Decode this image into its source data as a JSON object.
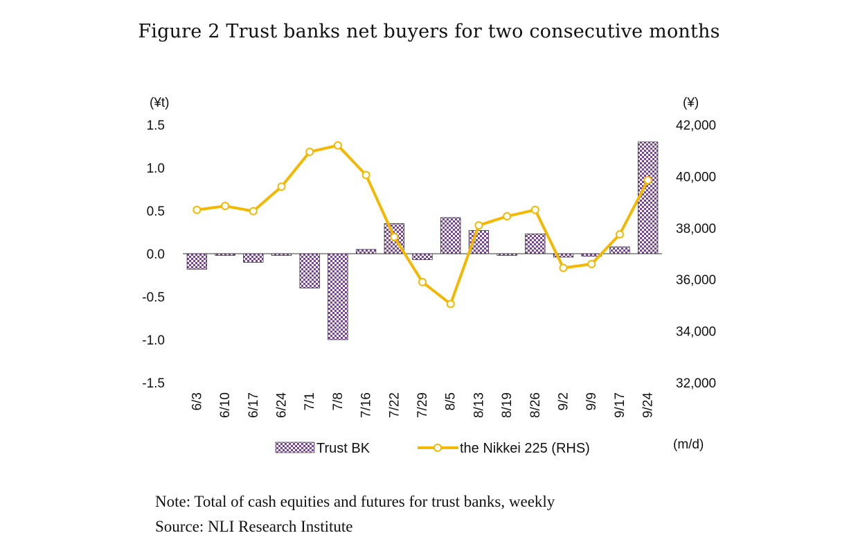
{
  "title": "Figure 2   Trust banks net buyers for two consecutive months",
  "notes": {
    "note": "Note: Total of cash equities and futures for trust banks, weekly",
    "source": "Source: NLI Research Institute"
  },
  "chart_data": {
    "type": "bar",
    "categories": [
      "6/3",
      "6/10",
      "6/17",
      "6/24",
      "7/1",
      "7/8",
      "7/16",
      "7/22",
      "7/29",
      "8/5",
      "8/13",
      "8/19",
      "8/26",
      "9/2",
      "9/9",
      "9/17",
      "9/24"
    ],
    "xlabel": "(m/d)",
    "ylabel": "(¥t)",
    "y2label": "(¥)",
    "ylim": [
      -1.5,
      1.5
    ],
    "y2lim": [
      32000,
      42000
    ],
    "yticks": [
      "1.5",
      "1.0",
      "0.5",
      "0.0",
      "-0.5",
      "-1.0",
      "-1.5"
    ],
    "y2ticks": [
      "42,000",
      "40,000",
      "38,000",
      "36,000",
      "34,000",
      "32,000"
    ],
    "grid": false,
    "legend_position": "bottom",
    "series": [
      {
        "name": "Trust BK",
        "type": "bar",
        "axis": "left",
        "color": "#7B3F9E",
        "pattern": "checkered",
        "values": [
          -0.18,
          -0.02,
          -0.1,
          -0.02,
          -0.4,
          -1.0,
          0.05,
          0.35,
          -0.07,
          0.42,
          0.27,
          -0.02,
          0.23,
          -0.04,
          -0.03,
          0.08,
          1.3
        ]
      },
      {
        "name": "the Nikkei 225 (RHS)",
        "type": "line",
        "axis": "right",
        "color": "#F5B800",
        "marker": "circle",
        "values": [
          38700,
          38850,
          38650,
          39600,
          40950,
          41200,
          40050,
          37650,
          35900,
          35050,
          38100,
          38450,
          38700,
          36450,
          36600,
          37750,
          39850
        ]
      }
    ]
  }
}
